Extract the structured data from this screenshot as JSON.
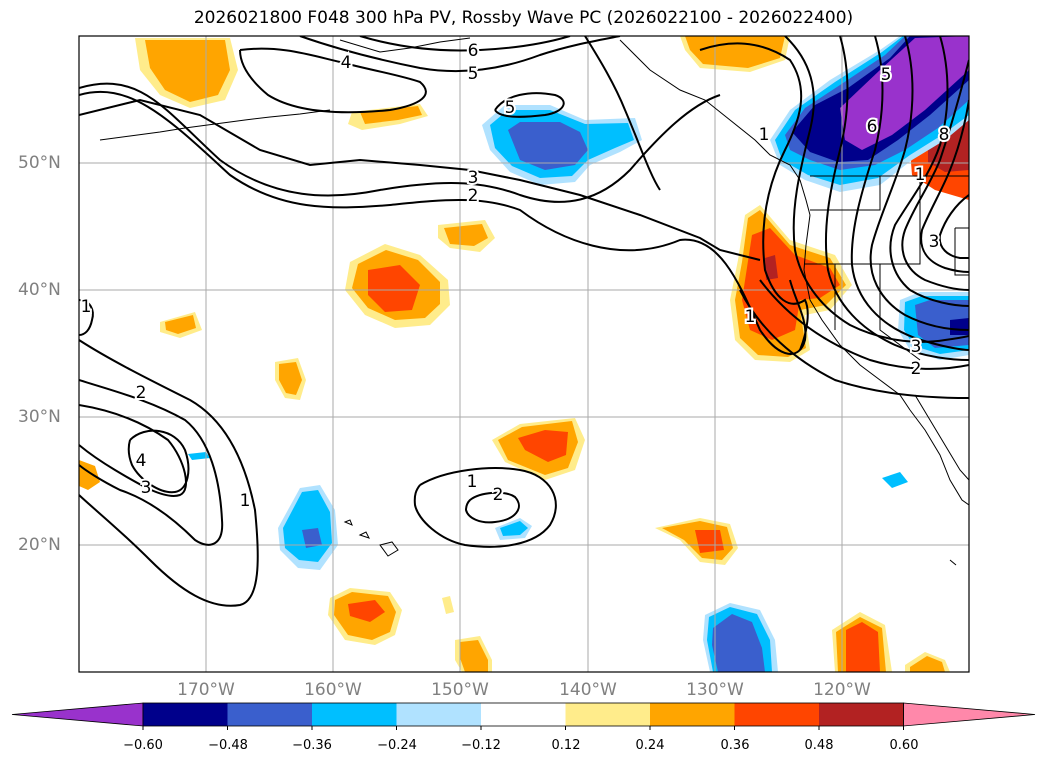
{
  "title": "2026021800 F048 300 hPa PV, Rossby Wave PC (2026022100 - 2026022400)",
  "map": {
    "lat_labels": [
      "50°N",
      "40°N",
      "30°N",
      "20°N"
    ],
    "lon_labels": [
      "170°W",
      "160°W",
      "150°W",
      "140°W",
      "130°W",
      "120°W"
    ],
    "extent": {
      "lon_min": -180,
      "lon_max": -110,
      "lat_min": 10,
      "lat_max": 60
    }
  },
  "contour_labels": [
    "6",
    "5",
    "4",
    "5",
    "3",
    "2",
    "1",
    "5",
    "6",
    "8",
    "1",
    "3",
    "1",
    "3",
    "2",
    "2",
    "4",
    "3",
    "1",
    "1",
    "2",
    "1"
  ],
  "colorbar": {
    "ticks": [
      "−0.60",
      "−0.48",
      "−0.36",
      "−0.24",
      "−0.12",
      "0.12",
      "0.24",
      "0.36",
      "0.48",
      "0.60"
    ],
    "colors": [
      "#9932cc",
      "#00008b",
      "#3a5fcd",
      "#00bfff",
      "#b0e2ff",
      "#ffffff",
      "#ffec8b",
      "#ffa500",
      "#ff4500",
      "#b22222",
      "#ff88aa"
    ]
  },
  "fill_colors": {
    "light_yellow": "#ffec8b",
    "orange": "#ffa500",
    "red_orange": "#ff4500",
    "dark_red": "#b22222",
    "light_blue": "#b0e2ff",
    "sky_blue": "#00bfff",
    "blue": "#3a5fcd",
    "navy": "#00008b",
    "purple": "#9932cc"
  }
}
